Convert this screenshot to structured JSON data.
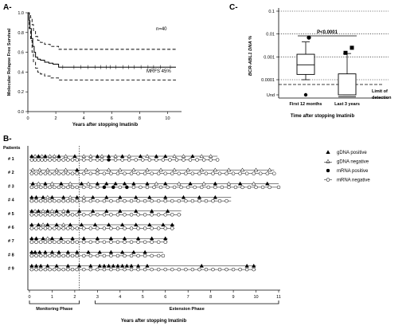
{
  "panels": {
    "a": {
      "letter": "A-"
    },
    "b": {
      "letter": "B-"
    },
    "c": {
      "letter": "C-"
    }
  },
  "chart_data": [
    {
      "id": "A",
      "type": "line",
      "ylabel": "Molecular Relapse Free Survival",
      "xlabel": "Years after stopping Imatinib",
      "xlim": [
        0,
        11
      ],
      "ylim": [
        0,
        1.0
      ],
      "xticks": [
        "0",
        "2",
        "4",
        "6",
        "8",
        "10"
      ],
      "yticks": [
        "0.0",
        "0.2",
        "0.4",
        "0.6",
        "0.8",
        "1.0"
      ],
      "annotations": [
        "n=40",
        "MRFS 45%"
      ],
      "series": [
        {
          "role": "estimate",
          "x": [
            0,
            0.08,
            0.15,
            0.25,
            0.35,
            0.45,
            0.55,
            0.7,
            0.9,
            1.2,
            1.5,
            1.8,
            2.2,
            10.6
          ],
          "y": [
            1.0,
            0.92,
            0.84,
            0.74,
            0.66,
            0.6,
            0.55,
            0.53,
            0.52,
            0.5,
            0.49,
            0.48,
            0.45,
            0.45
          ]
        },
        {
          "role": "upper",
          "x": [
            0,
            0.1,
            0.2,
            0.3,
            0.4,
            0.55,
            0.7,
            0.9,
            1.2,
            1.6,
            2.2,
            10.6
          ],
          "y": [
            1.0,
            0.98,
            0.95,
            0.88,
            0.82,
            0.76,
            0.72,
            0.7,
            0.68,
            0.66,
            0.63,
            0.63
          ]
        },
        {
          "role": "lower",
          "x": [
            0,
            0.1,
            0.2,
            0.3,
            0.4,
            0.55,
            0.7,
            0.9,
            1.2,
            1.6,
            2.2,
            10.6
          ],
          "y": [
            1.0,
            0.84,
            0.72,
            0.6,
            0.5,
            0.44,
            0.4,
            0.38,
            0.36,
            0.34,
            0.32,
            0.32
          ]
        }
      ],
      "censor_x": [
        2.5,
        3.3,
        3.8,
        4.3,
        4.8,
        5.2,
        5.6,
        5.9,
        6.3,
        6.8,
        7.2,
        7.6,
        8.1,
        8.6,
        9.0,
        9.5,
        10.2
      ]
    },
    {
      "id": "C",
      "type": "boxplot",
      "ylabel": "BCR-ABL1 DNA %",
      "xlabel": "Time after stopping Imatinib",
      "yscale": "log",
      "yticks": [
        "Und",
        "0.0001",
        "0.001",
        "0.01",
        "0.1"
      ],
      "categories": [
        "First 12 months",
        "Last 3 years"
      ],
      "boxes": [
        {
          "whisker_low": 0.0001,
          "q1": 0.00017,
          "median": 0.00045,
          "q3": 0.0013,
          "whisker_high": 0.0045,
          "outliers": [
            0.007
          ],
          "marker": "circle"
        },
        {
          "whisker_low": 0.0,
          "q1": 0.0,
          "median": 1.8e-05,
          "q3": 0.00018,
          "whisker_high": 0.0014,
          "outliers": [
            0.0025,
            0.0015
          ],
          "marker": "square"
        }
      ],
      "annotation": "P<0.0001",
      "limit_label": [
        "Limit of",
        "detection"
      ]
    },
    {
      "id": "B",
      "type": "scatter",
      "title": "Patients",
      "xlabel": "Years after stopping Imatinib",
      "xlim": [
        0,
        11
      ],
      "xticks": [
        "0",
        "1",
        "2",
        "3",
        "4",
        "5",
        "6",
        "7",
        "8",
        "9",
        "10",
        "11"
      ],
      "phases": [
        {
          "label": "Monitoring Phase",
          "from": 0,
          "to": 2.2
        },
        {
          "label": "Extension Phase",
          "from": 2.9,
          "to": 11
        }
      ],
      "legend": [
        {
          "label": "gDNA positive",
          "marker": "triangle-filled"
        },
        {
          "label": "gDNA negative",
          "marker": "triangle-open"
        },
        {
          "label": "mRNA positive",
          "marker": "circle-filled"
        },
        {
          "label": "mRNA negative",
          "marker": "circle-open"
        }
      ],
      "patients": [
        {
          "label": "# 1",
          "end": 8.3,
          "gdna_pos": [
            0.1,
            0.4,
            0.7,
            1.3,
            2.0,
            3.0,
            3.5,
            4.1,
            4.9,
            5.6,
            6.0,
            7.2
          ],
          "gdna_neg": [
            0.25,
            0.55,
            0.9,
            1.1,
            1.6,
            2.4,
            2.7,
            3.2,
            3.8,
            4.4,
            5.2,
            6.4,
            6.8,
            7.6,
            8.0
          ],
          "mrna_pos": [
            3.5
          ],
          "mrna_neg": [
            0.1,
            0.25,
            0.4,
            0.55,
            0.7,
            0.9,
            1.1,
            1.3,
            1.5,
            1.7,
            1.9,
            2.1,
            2.4,
            2.7,
            3.0,
            3.2,
            3.8,
            4.1,
            4.4,
            4.7,
            5.0,
            5.3,
            5.6,
            5.9,
            6.2,
            6.5,
            6.8,
            7.1,
            7.4,
            7.7,
            8.0,
            8.3
          ]
        },
        {
          "label": "# 2",
          "end": 10.8,
          "gdna_pos": [
            2.1
          ],
          "gdna_neg": [
            0.15,
            0.45,
            0.8,
            1.2,
            1.6,
            2.5,
            3.0,
            3.5,
            4.0,
            4.6,
            5.2,
            5.8,
            6.4,
            7.0,
            7.6,
            8.2,
            8.8,
            9.4,
            10.0,
            10.6
          ],
          "mrna_pos": [],
          "mrna_neg": [
            0.1,
            0.3,
            0.5,
            0.7,
            0.9,
            1.1,
            1.3,
            1.5,
            1.7,
            1.9,
            2.1,
            2.4,
            2.7,
            3.0,
            3.3,
            3.6,
            3.9,
            4.2,
            4.5,
            4.8,
            5.1,
            5.4,
            5.7,
            6.0,
            6.3,
            6.6,
            6.9,
            7.2,
            7.5,
            7.8,
            8.1,
            8.4,
            8.7,
            9.0,
            9.3,
            9.6,
            9.9,
            10.2,
            10.5,
            10.8
          ]
        },
        {
          "label": "# 3",
          "end": 11.0,
          "gdna_pos": [
            0.15,
            0.7,
            1.4,
            2.3,
            3.0,
            3.4,
            3.8,
            4.2,
            4.6,
            5.2,
            6.0,
            7.1,
            8.2,
            9.3,
            10.5
          ],
          "gdna_neg": [
            0.4,
            1.0,
            1.8,
            2.6,
            5.6,
            6.6,
            7.7,
            8.8,
            9.9
          ],
          "mrna_pos": [
            3.3,
            3.7,
            4.3
          ],
          "mrna_neg": [
            0.1,
            0.3,
            0.5,
            0.7,
            0.9,
            1.1,
            1.3,
            1.5,
            1.7,
            1.9,
            2.1,
            2.4,
            2.7,
            3.0,
            4.0,
            4.6,
            4.9,
            5.2,
            5.5,
            5.8,
            6.1,
            6.4,
            6.7,
            7.0,
            7.3,
            7.6,
            7.9,
            8.2,
            8.5,
            8.8,
            9.1,
            9.4,
            9.7,
            10.0,
            10.3,
            10.6,
            11.0
          ]
        },
        {
          "label": "# 4",
          "end": 8.9,
          "gdna_pos": [
            0.1,
            0.3,
            0.6,
            1.0,
            1.5,
            2.1,
            2.8,
            3.4,
            4.0,
            4.7,
            5.3,
            6.0,
            6.8,
            7.5,
            8.2
          ],
          "gdna_neg": [
            0.8,
            1.8,
            2.4
          ],
          "mrna_pos": [],
          "mrna_neg": [
            0.1,
            0.3,
            0.5,
            0.7,
            0.9,
            1.1,
            1.3,
            1.5,
            1.7,
            1.9,
            2.1,
            2.4,
            2.7,
            3.0,
            3.3,
            3.6,
            3.9,
            4.2,
            4.5,
            4.8,
            5.1,
            5.4,
            5.7,
            6.0,
            6.3,
            6.6,
            6.9,
            7.2,
            7.5,
            7.8,
            8.1,
            8.4,
            8.7
          ]
        },
        {
          "label": "# 5",
          "end": 6.7,
          "gdna_pos": [
            0.1,
            0.4,
            0.8,
            1.2,
            1.7,
            2.2,
            2.8,
            3.4,
            4.0,
            4.7,
            5.4,
            6.1
          ],
          "gdna_neg": [
            0.25,
            0.6,
            1.0,
            1.5
          ],
          "mrna_pos": [],
          "mrna_neg": [
            0.1,
            0.3,
            0.5,
            0.7,
            0.9,
            1.1,
            1.3,
            1.5,
            1.7,
            1.9,
            2.1,
            2.4,
            2.7,
            3.0,
            3.3,
            3.6,
            3.9,
            4.2,
            4.5,
            4.8,
            5.1,
            5.4,
            5.7,
            6.0,
            6.3,
            6.6
          ]
        },
        {
          "label": "# 6",
          "end": 6.4,
          "gdna_pos": [
            0.1,
            0.4,
            0.8,
            1.2,
            1.8,
            2.3,
            2.9,
            3.5,
            4.1,
            4.7,
            5.3,
            5.9,
            6.3
          ],
          "gdna_neg": [
            0.6,
            1.5
          ],
          "mrna_pos": [],
          "mrna_neg": [
            0.1,
            0.3,
            0.5,
            0.7,
            0.9,
            1.1,
            1.3,
            1.5,
            1.7,
            1.9,
            2.1,
            2.4,
            2.7,
            3.0,
            3.3,
            3.6,
            3.9,
            4.2,
            4.5,
            4.8,
            5.1,
            5.4,
            5.7,
            6.0,
            6.3
          ]
        },
        {
          "label": "# 7",
          "end": 6.1,
          "gdna_pos": [
            0.1,
            0.3,
            0.6,
            1.0,
            1.4,
            1.9,
            2.4,
            3.0,
            3.6,
            4.2,
            4.8,
            5.4,
            6.0
          ],
          "gdna_neg": [
            0.8
          ],
          "mrna_pos": [],
          "mrna_neg": [
            0.1,
            0.3,
            0.5,
            0.7,
            0.9,
            1.1,
            1.3,
            1.5,
            1.7,
            1.9,
            2.1,
            2.4,
            2.7,
            3.0,
            3.3,
            3.6,
            3.9,
            4.2,
            4.5,
            4.8,
            5.1,
            5.4,
            5.7,
            6.0
          ]
        },
        {
          "label": "# 8",
          "end": 5.9,
          "gdna_pos": [
            0.1,
            0.25,
            0.45,
            0.7,
            1.0,
            1.3,
            1.7,
            2.1,
            2.6,
            3.1,
            3.6,
            4.1,
            4.6,
            5.1
          ],
          "gdna_neg": [],
          "mrna_pos": [],
          "mrna_neg": [
            0.1,
            0.3,
            0.5,
            0.7,
            0.9,
            1.1,
            1.3,
            1.5,
            1.7,
            1.9,
            2.1,
            2.4,
            2.7,
            3.0,
            3.3,
            3.6,
            3.9,
            4.2,
            4.5,
            4.8,
            5.1,
            5.4,
            5.7,
            5.9
          ]
        },
        {
          "label": "# 9",
          "end": 10.0,
          "gdna_pos": [
            0.1,
            0.3,
            0.5,
            0.8,
            1.2,
            1.7,
            2.2,
            2.7,
            3.1,
            3.3,
            3.5,
            3.7,
            3.9,
            4.1,
            4.3,
            4.5,
            4.8,
            5.2,
            7.6,
            9.6,
            9.9
          ],
          "gdna_neg": [],
          "mrna_pos": [],
          "mrna_neg": [
            0.1,
            0.3,
            0.5,
            0.7,
            0.9,
            1.1,
            1.3,
            1.5,
            1.7,
            1.9,
            2.1,
            2.4,
            2.7,
            3.0,
            3.3,
            3.6,
            3.9,
            4.2,
            4.5,
            4.8,
            5.1,
            5.4,
            5.7,
            6.0,
            6.3,
            6.6,
            6.9,
            7.2,
            7.5,
            7.8,
            8.1,
            8.4,
            8.7,
            9.0,
            9.3,
            9.6,
            9.9
          ]
        }
      ]
    }
  ]
}
